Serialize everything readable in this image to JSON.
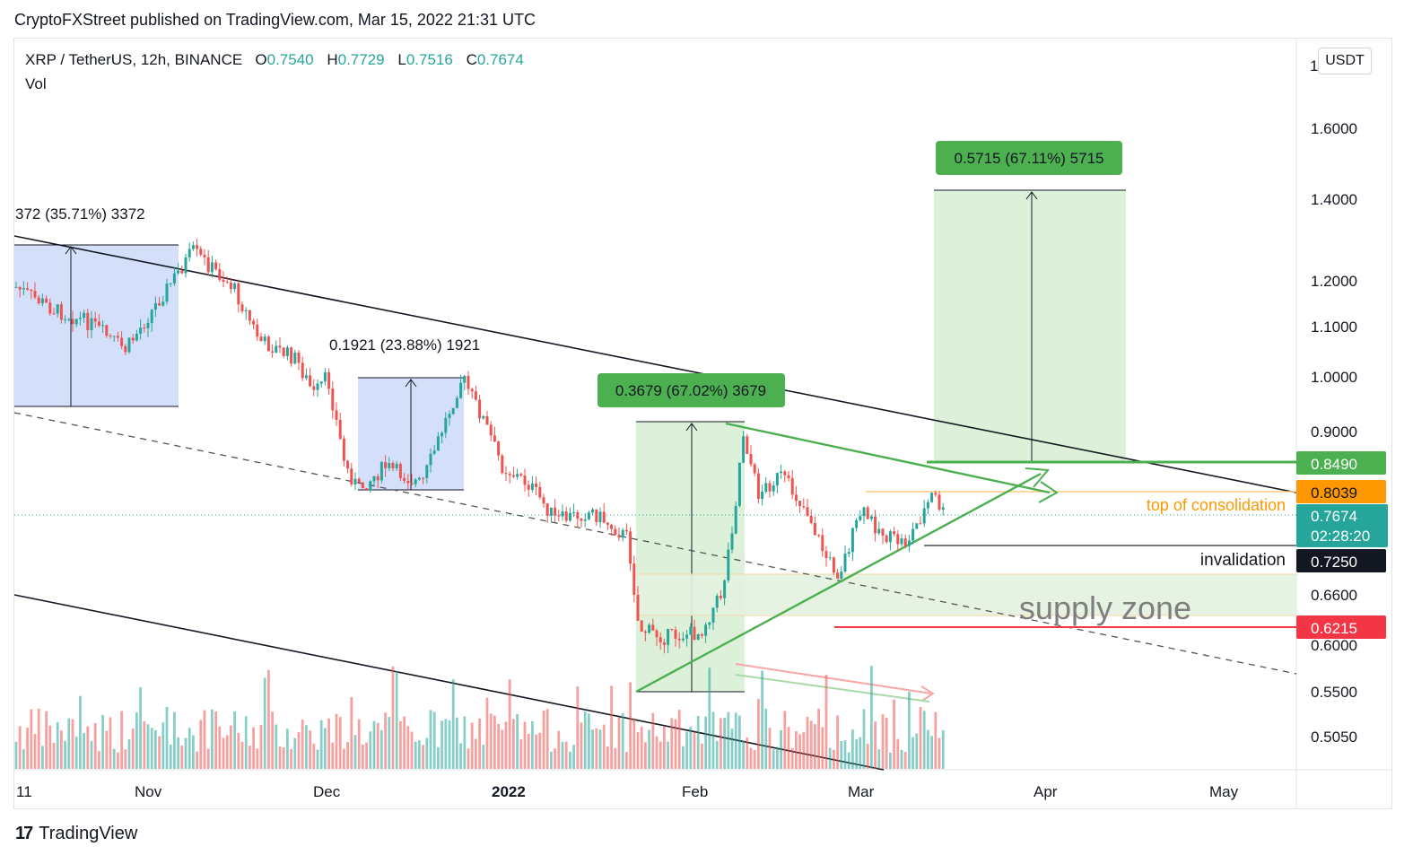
{
  "header": {
    "published": "CryptoFXStreet published on TradingView.com, Mar 15, 2022 21:31 UTC"
  },
  "legend": {
    "symbol": "XRP / TetherUS, 12h, BINANCE",
    "o_label": "O",
    "o": "0.7540",
    "h_label": "H",
    "h": "0.7729",
    "l_label": "L",
    "l": "0.7516",
    "c_label": "C",
    "c": "0.7674",
    "vol": "Vol"
  },
  "currency": "USDT",
  "footer": {
    "logo": "17",
    "brand": "TradingView"
  },
  "colors": {
    "up": "#26a69a",
    "down": "#ef5350",
    "green_label": "#4caf50",
    "orange": "#ff9800",
    "red": "#f23645",
    "black": "#131722",
    "blue_box": "#c5d5f8",
    "green_box": "#d6edd3"
  },
  "chart_data": {
    "type": "candlestick",
    "x_axis_labels": [
      "11",
      "Nov",
      "Dec",
      "2022",
      "Feb",
      "Mar",
      "Apr",
      "May"
    ],
    "y_axis_labels": [
      "1",
      "1.6000",
      "1.4000",
      "1.2000",
      "1.1000",
      "1.0000",
      "0.9000",
      "0.6600",
      "0.6000",
      "0.5500",
      "0.5050"
    ],
    "price_tags": [
      {
        "value": "0.8490",
        "color": "#4caf50"
      },
      {
        "value": "0.8039",
        "color": "#ff9800"
      },
      {
        "value": "0.7674",
        "color": "#26a69a",
        "countdown": "02:28:20"
      },
      {
        "value": "0.7250",
        "color": "#131722"
      },
      {
        "value": "0.6215",
        "color": "#f23645"
      }
    ],
    "annotations": {
      "range1": "372 (35.71%) 3372",
      "range2": "0.1921 (23.88%) 1921",
      "range3": "0.3679 (67.02%) 3679",
      "range4": "0.5715 (67.11%) 5715",
      "top_consolidation": "top of consolidation",
      "invalidation": "invalidation",
      "supply_zone": "supply zone"
    },
    "last_close": 0.7674,
    "log_scale": true
  }
}
